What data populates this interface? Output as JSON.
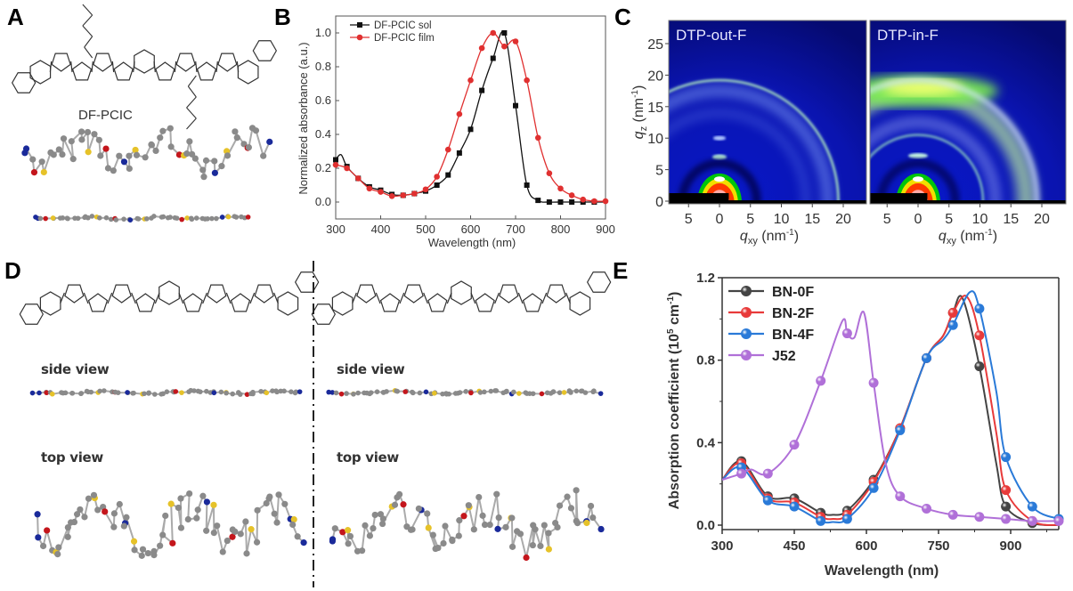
{
  "panels": {
    "a": "A",
    "b": "B",
    "c": "C",
    "d": "D",
    "e": "E"
  },
  "panel_a": {
    "molecule_name": "DF-PCIC"
  },
  "panel_d": {
    "left": {
      "side_label": "side view",
      "top_label": "top view"
    },
    "right": {
      "side_label": "side view",
      "top_label": "top view"
    }
  },
  "colors": {
    "carbon": "#8a8a8a",
    "sulfur": "#e6c229",
    "oxygen": "#c4161c",
    "nitrogen": "#1a2a9a",
    "fluorine": "#8fd3d8",
    "bond": "#333333"
  },
  "chart_data": [
    {
      "id": "B",
      "type": "line",
      "xlabel": "Wavelength (nm)",
      "ylabel": "Normalized absorbance (a.u.)",
      "xlim": [
        300,
        900
      ],
      "ylim": [
        -0.1,
        1.1
      ],
      "xticks": [
        300,
        400,
        500,
        600,
        700,
        800,
        900
      ],
      "yticks": [
        0.0,
        0.2,
        0.4,
        0.6,
        0.8,
        1.0
      ],
      "legend": "top-left",
      "grid": false,
      "series": [
        {
          "name": "DF-PCIC sol",
          "color": "#111111",
          "marker": "square",
          "curve": [
            [
              300,
              0.25
            ],
            [
              312,
              0.28
            ],
            [
              325,
              0.21
            ],
            [
              350,
              0.14
            ],
            [
              375,
              0.09
            ],
            [
              400,
              0.07
            ],
            [
              425,
              0.045
            ],
            [
              450,
              0.04
            ],
            [
              475,
              0.05
            ],
            [
              500,
              0.065
            ],
            [
              525,
              0.1
            ],
            [
              550,
              0.16
            ],
            [
              575,
              0.29
            ],
            [
              600,
              0.43
            ],
            [
              625,
              0.66
            ],
            [
              650,
              0.85
            ],
            [
              675,
              1.0
            ],
            [
              700,
              0.57
            ],
            [
              725,
              0.1
            ],
            [
              750,
              0.01
            ],
            [
              775,
              0.0
            ],
            [
              800,
              0.0
            ],
            [
              825,
              0.0
            ],
            [
              850,
              0.0
            ],
            [
              875,
              0.0
            ],
            [
              900,
              0.0
            ]
          ],
          "markers": [
            300,
            325,
            350,
            375,
            400,
            425,
            450,
            475,
            500,
            525,
            550,
            575,
            600,
            625,
            650,
            675,
            700,
            725,
            750,
            775,
            800,
            825,
            850,
            875
          ]
        },
        {
          "name": "DF-PCIC film",
          "color": "#e03030",
          "marker": "circle",
          "curve": [
            [
              300,
              0.22
            ],
            [
              325,
              0.2
            ],
            [
              350,
              0.14
            ],
            [
              375,
              0.08
            ],
            [
              400,
              0.06
            ],
            [
              425,
              0.035
            ],
            [
              450,
              0.04
            ],
            [
              475,
              0.05
            ],
            [
              500,
              0.075
            ],
            [
              525,
              0.15
            ],
            [
              550,
              0.31
            ],
            [
              575,
              0.52
            ],
            [
              600,
              0.72
            ],
            [
              625,
              0.91
            ],
            [
              650,
              1.0
            ],
            [
              675,
              0.92
            ],
            [
              700,
              0.95
            ],
            [
              725,
              0.72
            ],
            [
              750,
              0.38
            ],
            [
              775,
              0.17
            ],
            [
              800,
              0.08
            ],
            [
              825,
              0.04
            ],
            [
              850,
              0.015
            ],
            [
              875,
              0.005
            ],
            [
              900,
              0.005
            ]
          ],
          "markers": [
            300,
            325,
            350,
            375,
            400,
            425,
            450,
            475,
            500,
            525,
            550,
            575,
            600,
            625,
            650,
            675,
            700,
            725,
            750,
            775,
            800,
            825,
            850,
            875,
            900
          ]
        }
      ]
    },
    {
      "id": "C",
      "type": "heatmap",
      "panels": [
        {
          "title": "DTP-out-F"
        },
        {
          "title": "DTP-in-F"
        }
      ],
      "ylabel_main": "q",
      "ylabel_sub": "z",
      "ylabel_unit": " (nm",
      "ylabel_exp": "-1",
      "ylabel_close": ")",
      "xlabel_main": "q",
      "xlabel_sub": "xy",
      "xlabel_unit": " (nm",
      "xlabel_exp": "-1",
      "xlabel_close": ")",
      "yticks": [
        0,
        5,
        10,
        15,
        20,
        25
      ],
      "xticks": [
        -5,
        0,
        5,
        10,
        15,
        20
      ],
      "xtick_labels": [
        "5",
        "0",
        "5",
        "10",
        "15",
        "20"
      ],
      "ylim": [
        0,
        28
      ],
      "xlim": [
        -8,
        24
      ]
    },
    {
      "id": "E",
      "type": "line",
      "xlabel": "Wavelength (nm)",
      "ylabel_text": "Absorption coefficient (10",
      "ylabel_exp1": "5",
      "ylabel_mid": " cm",
      "ylabel_exp2": "-1",
      "ylabel_close": ")",
      "xlim": [
        300,
        1000
      ],
      "ylim": [
        -0.02,
        1.2
      ],
      "xticks": [
        300,
        450,
        600,
        750,
        900
      ],
      "yticks": [
        0.0,
        0.4,
        0.8,
        1.2
      ],
      "legend": "top-left",
      "grid": false,
      "series": [
        {
          "name": "BN-0F",
          "color": "#444444",
          "curve": [
            [
              300,
              0.22
            ],
            [
              340,
              0.31
            ],
            [
              395,
              0.14
            ],
            [
              450,
              0.13
            ],
            [
              505,
              0.06
            ],
            [
              530,
              0.05
            ],
            [
              560,
              0.07
            ],
            [
              615,
              0.22
            ],
            [
              670,
              0.47
            ],
            [
              725,
              0.81
            ],
            [
              760,
              0.92
            ],
            [
              780,
              1.03
            ],
            [
              800,
              1.1
            ],
            [
              835,
              0.77
            ],
            [
              870,
              0.3
            ],
            [
              890,
              0.09
            ],
            [
              945,
              0.01
            ],
            [
              1000,
              0.0
            ]
          ],
          "markers": [
            340,
            395,
            450,
            505,
            560,
            615,
            670,
            725,
            780,
            835,
            890,
            945
          ]
        },
        {
          "name": "BN-2F",
          "color": "#e83a3a",
          "curve": [
            [
              300,
              0.22
            ],
            [
              340,
              0.3
            ],
            [
              395,
              0.13
            ],
            [
              450,
              0.11
            ],
            [
              505,
              0.04
            ],
            [
              530,
              0.03
            ],
            [
              560,
              0.05
            ],
            [
              615,
              0.21
            ],
            [
              670,
              0.47
            ],
            [
              725,
              0.81
            ],
            [
              760,
              0.92
            ],
            [
              780,
              1.03
            ],
            [
              808,
              1.11
            ],
            [
              835,
              0.92
            ],
            [
              870,
              0.45
            ],
            [
              890,
              0.17
            ],
            [
              945,
              0.02
            ],
            [
              1000,
              0.0
            ]
          ],
          "markers": [
            340,
            395,
            450,
            505,
            560,
            615,
            670,
            725,
            780,
            835,
            890,
            945
          ]
        },
        {
          "name": "BN-4F",
          "color": "#2a7ad8",
          "curve": [
            [
              300,
              0.22
            ],
            [
              340,
              0.28
            ],
            [
              395,
              0.12
            ],
            [
              450,
              0.09
            ],
            [
              505,
              0.02
            ],
            [
              530,
              0.015
            ],
            [
              560,
              0.03
            ],
            [
              615,
              0.18
            ],
            [
              670,
              0.46
            ],
            [
              725,
              0.81
            ],
            [
              760,
              0.9
            ],
            [
              780,
              0.97
            ],
            [
              815,
              1.13
            ],
            [
              835,
              1.05
            ],
            [
              870,
              0.65
            ],
            [
              890,
              0.33
            ],
            [
              945,
              0.09
            ],
            [
              1000,
              0.03
            ]
          ],
          "markers": [
            340,
            395,
            450,
            505,
            560,
            615,
            670,
            725,
            780,
            835,
            890,
            945,
            1000
          ]
        },
        {
          "name": "J52",
          "color": "#b070d8",
          "curve": [
            [
              300,
              0.22
            ],
            [
              340,
              0.25
            ],
            [
              360,
              0.27
            ],
            [
              395,
              0.25
            ],
            [
              450,
              0.39
            ],
            [
              505,
              0.7
            ],
            [
              550,
              0.99
            ],
            [
              560,
              0.93
            ],
            [
              575,
              0.91
            ],
            [
              595,
              1.03
            ],
            [
              615,
              0.69
            ],
            [
              640,
              0.3
            ],
            [
              670,
              0.14
            ],
            [
              725,
              0.08
            ],
            [
              780,
              0.05
            ],
            [
              835,
              0.04
            ],
            [
              890,
              0.03
            ],
            [
              945,
              0.02
            ],
            [
              1000,
              0.02
            ]
          ],
          "markers": [
            340,
            395,
            450,
            505,
            560,
            615,
            670,
            725,
            780,
            835,
            890,
            945,
            1000
          ]
        }
      ]
    }
  ]
}
